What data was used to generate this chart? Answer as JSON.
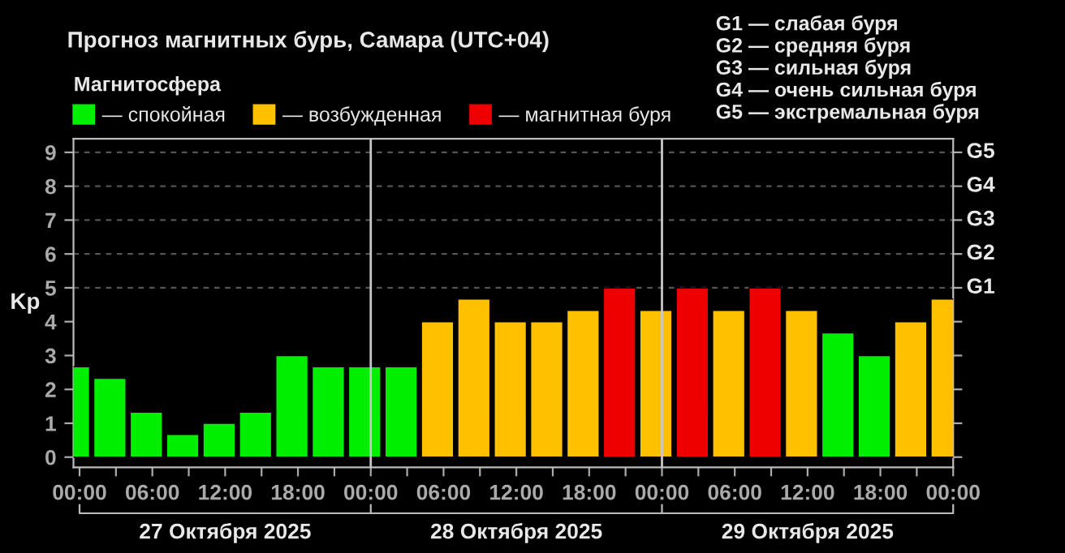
{
  "chart_data": {
    "type": "bar",
    "title": "Прогноз магнитных бурь, Самара (UTC+04)",
    "ylabel": "Kp",
    "legend_title": "Магнитосфера",
    "legend": "top left",
    "x": [
      "2025-10-26T23:30",
      "2025-10-27T02:30",
      "2025-10-27T05:30",
      "2025-10-27T08:30",
      "2025-10-27T11:30",
      "2025-10-27T14:30",
      "2025-10-27T17:30",
      "2025-10-27T20:30",
      "2025-10-27T23:30",
      "2025-10-28T02:30",
      "2025-10-28T05:30",
      "2025-10-28T08:30",
      "2025-10-28T11:30",
      "2025-10-28T14:30",
      "2025-10-28T17:30",
      "2025-10-28T20:30",
      "2025-10-28T23:30",
      "2025-10-29T02:30",
      "2025-10-29T05:30",
      "2025-10-29T08:30",
      "2025-10-29T11:30",
      "2025-10-29T14:30",
      "2025-10-29T17:30",
      "2025-10-29T20:30",
      "2025-10-29T23:30"
    ],
    "series": [
      {
        "name": "— спокойная",
        "color": "#00ee00",
        "values": [
          2.67,
          2.33,
          1.33,
          0.67,
          1.0,
          1.33,
          3.0,
          2.67,
          2.67,
          2.67,
          null,
          null,
          null,
          null,
          null,
          null,
          null,
          null,
          null,
          null,
          null,
          3.67,
          3.0,
          null,
          null
        ]
      },
      {
        "name": "— возбужденная",
        "color": "#ffc000",
        "values": [
          null,
          null,
          null,
          null,
          null,
          null,
          null,
          null,
          null,
          null,
          4.0,
          4.67,
          4.0,
          4.0,
          4.33,
          null,
          4.33,
          null,
          4.33,
          null,
          4.33,
          null,
          null,
          4.0,
          4.67
        ]
      },
      {
        "name": "— магнитная буря",
        "color": "#ee0000",
        "values": [
          null,
          null,
          null,
          null,
          null,
          null,
          null,
          null,
          null,
          null,
          null,
          null,
          null,
          null,
          null,
          5.0,
          null,
          5.0,
          null,
          5.0,
          null,
          null,
          null,
          null,
          null
        ]
      }
    ],
    "xlim": [
      "2025-10-26T23:30",
      "2025-10-30T00:00"
    ],
    "xticks": [
      {
        "value": "2025-10-27T00:00",
        "label": "00:00"
      },
      {
        "value": "2025-10-27T03:00",
        "label": null
      },
      {
        "value": "2025-10-27T06:00",
        "label": "06:00"
      },
      {
        "value": "2025-10-27T09:00",
        "label": null
      },
      {
        "value": "2025-10-27T12:00",
        "label": "12:00"
      },
      {
        "value": "2025-10-27T15:00",
        "label": null
      },
      {
        "value": "2025-10-27T18:00",
        "label": "18:00"
      },
      {
        "value": "2025-10-27T21:00",
        "label": null
      },
      {
        "value": "2025-10-28T00:00",
        "label": "00:00"
      },
      {
        "value": "2025-10-28T03:00",
        "label": null
      },
      {
        "value": "2025-10-28T06:00",
        "label": "06:00"
      },
      {
        "value": "2025-10-28T09:00",
        "label": null
      },
      {
        "value": "2025-10-28T12:00",
        "label": "12:00"
      },
      {
        "value": "2025-10-28T15:00",
        "label": null
      },
      {
        "value": "2025-10-28T18:00",
        "label": "18:00"
      },
      {
        "value": "2025-10-28T21:00",
        "label": null
      },
      {
        "value": "2025-10-29T00:00",
        "label": "00:00"
      },
      {
        "value": "2025-10-29T03:00",
        "label": null
      },
      {
        "value": "2025-10-29T06:00",
        "label": "06:00"
      },
      {
        "value": "2025-10-29T09:00",
        "label": null
      },
      {
        "value": "2025-10-29T12:00",
        "label": "12:00"
      },
      {
        "value": "2025-10-29T15:00",
        "label": null
      },
      {
        "value": "2025-10-29T18:00",
        "label": "18:00"
      },
      {
        "value": "2025-10-29T21:00",
        "label": null
      },
      {
        "value": "2025-10-30T00:00",
        "label": "00:00"
      }
    ],
    "ylim": [
      -0.3,
      9.4
    ],
    "yticks": [
      0,
      1,
      2,
      3,
      4,
      5,
      6,
      7,
      8,
      9
    ],
    "ref_lines": [
      {
        "axis": "x",
        "value": "2025-10-28T00:00",
        "color": "#c8c8c8",
        "line_style": "solid"
      },
      {
        "axis": "x",
        "value": "2025-10-29T00:00",
        "color": "#c8c8c8",
        "line_style": "solid"
      },
      {
        "axis": "y",
        "value": 5,
        "label": "G1",
        "color": "#555555",
        "line_style": "dashed"
      },
      {
        "axis": "y",
        "value": 6,
        "label": "G2",
        "color": "#555555",
        "line_style": "dashed"
      },
      {
        "axis": "y",
        "value": 7,
        "label": "G3",
        "color": "#555555",
        "line_style": "dashed"
      },
      {
        "axis": "y",
        "value": 8,
        "label": "G4",
        "color": "#555555",
        "line_style": "dashed"
      },
      {
        "axis": "y",
        "value": 9,
        "label": "G5",
        "color": "#555555",
        "line_style": "dashed"
      }
    ],
    "annotations": [
      "27 Октября 2025",
      "28 Октября 2025",
      "29 Октября 2025",
      "G1 — слабая буря",
      "G2 — средняя буря",
      "G3 — сильная буря",
      "G4 — очень сильная буря",
      "G5 — экстремальная буря"
    ]
  }
}
